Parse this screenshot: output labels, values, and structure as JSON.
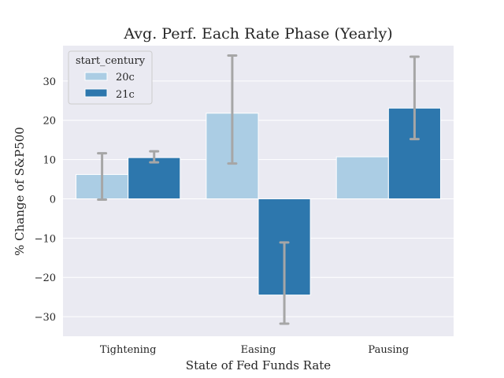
{
  "chart_data": {
    "type": "bar",
    "title": "Avg. Perf. Each Rate Phase (Yearly)",
    "xlabel": "State of Fed Funds Rate",
    "ylabel": "% Change of S&P500",
    "categories": [
      "Tightening",
      "Easing",
      "Pausing"
    ],
    "ylim": [
      -35,
      39
    ],
    "yticks": [
      -30,
      -20,
      -10,
      0,
      10,
      20,
      30
    ],
    "ytick_labels": [
      "−30",
      "−20",
      "−10",
      "0",
      "10",
      "20",
      "30"
    ],
    "grid": true,
    "legend": {
      "title": "start_century",
      "position": "top-left"
    },
    "series": [
      {
        "name": "20c",
        "color": "#abcde4",
        "values": [
          6.2,
          21.8,
          10.7
        ],
        "error_low": [
          -0.2,
          9.0,
          null
        ],
        "error_high": [
          11.6,
          36.5,
          null
        ]
      },
      {
        "name": "21c",
        "color": "#2d77ad",
        "values": [
          10.5,
          -24.5,
          23.1
        ],
        "error_low": [
          9.3,
          -31.8,
          15.2
        ],
        "error_high": [
          12.1,
          -11.1,
          36.2
        ]
      }
    ]
  }
}
